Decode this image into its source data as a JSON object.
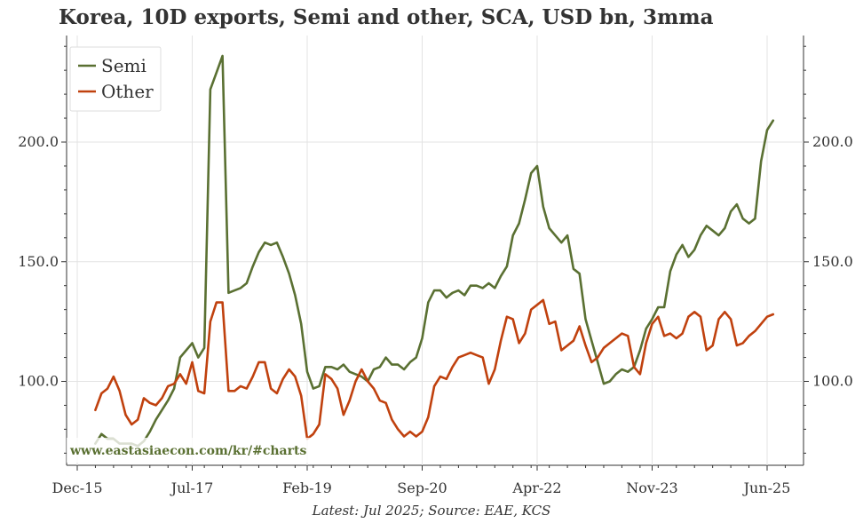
{
  "title": "Korea, 10D exports, Semi and other, SCA, USD bn, 3mma",
  "footnote": "Latest: Jul 2025; Source: EAE, KCS",
  "watermark": "www.eastasiaecon.com/kr/#charts",
  "colors": {
    "semi": "#5a7032",
    "other": "#c0410e",
    "grid": "#e3e3e3",
    "axis": "#333333"
  },
  "chart_data": {
    "type": "line",
    "title": "Korea, 10D exports, Semi and other, SCA, USD bn, 3mma",
    "xlabel": "",
    "ylabel": "",
    "x_ticks": [
      "Dec-15",
      "Jul-17",
      "Feb-19",
      "Sep-20",
      "Apr-22",
      "Nov-23",
      "Jun-25"
    ],
    "x_start": "2016-03",
    "x_end": "2025-07",
    "ylim": [
      68,
      245
    ],
    "y_ticks": [
      100.0,
      150.0,
      200.0
    ],
    "y_tick_labels": [
      "100.0",
      "150.0",
      "200.0"
    ],
    "grid": true,
    "legend": "top-left",
    "series": [
      {
        "name": "Semi",
        "values": [
          74,
          78,
          76,
          76,
          74,
          74,
          74,
          73,
          75,
          79,
          84,
          88,
          92,
          97,
          110,
          113,
          116,
          110,
          114,
          222,
          229,
          236,
          137,
          138,
          139,
          141,
          148,
          154,
          158,
          157,
          158,
          152,
          145,
          136,
          124,
          104,
          97,
          98,
          106,
          106,
          105,
          107,
          104,
          103,
          102,
          100,
          105,
          106,
          110,
          107,
          107,
          105,
          108,
          110,
          118,
          133,
          138,
          138,
          135,
          137,
          138,
          136,
          140,
          140,
          139,
          141,
          139,
          144,
          148,
          161,
          166,
          176,
          187,
          190,
          173,
          164,
          161,
          158,
          161,
          147,
          145,
          126,
          117,
          108,
          99,
          100,
          103,
          105,
          104,
          106,
          113,
          122,
          126,
          131,
          131,
          146,
          153,
          157,
          152,
          155,
          161,
          165,
          163,
          161,
          164,
          171,
          174,
          168,
          166,
          168,
          192,
          205,
          209
        ]
      },
      {
        "name": "Other",
        "values": [
          88,
          95,
          97,
          102,
          96,
          86,
          82,
          84,
          93,
          91,
          90,
          93,
          98,
          99,
          103,
          99,
          108,
          96,
          95,
          125,
          133,
          133,
          96,
          96,
          98,
          97,
          102,
          108,
          108,
          97,
          95,
          101,
          105,
          102,
          94,
          76,
          78,
          82,
          103,
          101,
          97,
          86,
          92,
          100,
          105,
          100,
          97,
          92,
          91,
          84,
          80,
          77,
          79,
          77,
          79,
          85,
          98,
          102,
          101,
          106,
          110,
          111,
          112,
          111,
          110,
          99,
          105,
          117,
          127,
          126,
          116,
          120,
          130,
          132,
          134,
          124,
          125,
          113,
          115,
          117,
          123,
          115,
          108,
          110,
          114,
          116,
          118,
          120,
          119,
          106,
          103,
          116,
          124,
          127,
          119,
          120,
          118,
          120,
          127,
          129,
          127,
          113,
          115,
          126,
          129,
          126,
          115,
          116,
          119,
          121,
          124,
          127,
          128
        ]
      }
    ]
  }
}
